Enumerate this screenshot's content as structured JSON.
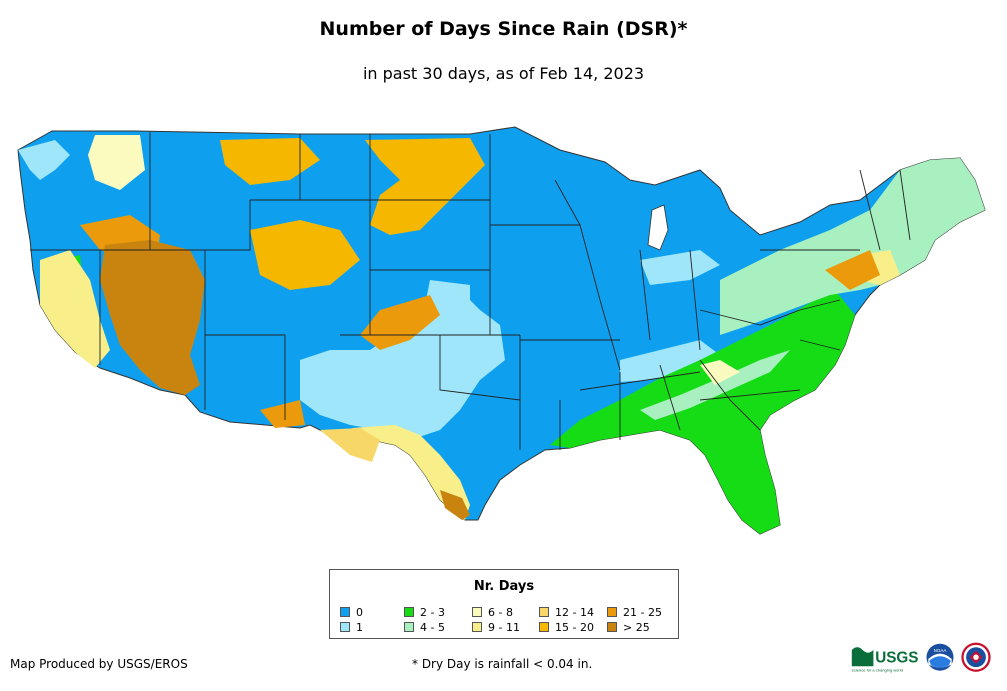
{
  "title": "Number of Days Since Rain (DSR)*",
  "subtitle": "in past 30 days, as of Feb 14, 2023",
  "legend": {
    "title": "Nr. Days",
    "items": [
      {
        "label": "0",
        "color": "#0ea0ef"
      },
      {
        "label": "1",
        "color": "#9fe6fb"
      },
      {
        "label": "2 - 3",
        "color": "#16dc16"
      },
      {
        "label": "4 - 5",
        "color": "#a8f0c0"
      },
      {
        "label": "6 - 8",
        "color": "#fbfbc0"
      },
      {
        "label": "9 - 11",
        "color": "#f9ef8a"
      },
      {
        "label": "12 - 14",
        "color": "#f6d768"
      },
      {
        "label": "15 - 20",
        "color": "#f5b700"
      },
      {
        "label": "21 - 25",
        "color": "#ea9a0a"
      },
      {
        "label": "> 25",
        "color": "#c98410"
      }
    ]
  },
  "credit": "Map Produced by USGS/EROS",
  "footnote": "* Dry Day is rainfall < 0.04 in.",
  "logos": {
    "usgs_text": "USGS",
    "usgs_tagline": "science for a changing world",
    "noaa_text": "NOAA"
  }
}
